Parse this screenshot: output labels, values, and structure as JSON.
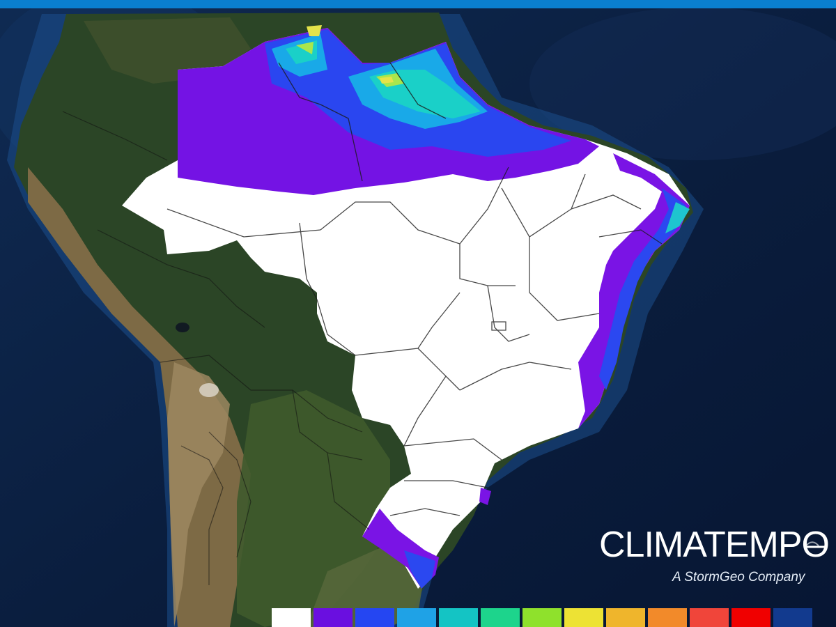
{
  "brand": {
    "name": "CLIMATEMPO",
    "tagline": "A StormGeo Company",
    "top_bar_color": "#0a7fcf"
  },
  "map": {
    "region": "South America",
    "base_layer": "satellite relief imagery with country and Brazilian state borders",
    "ocean_color": "#0b2347",
    "land_colors": [
      "#263f1f",
      "#6e6040",
      "#8d7a58"
    ],
    "overlay": {
      "no_value_color": "#ffffff",
      "features": [
        {
          "name": "northern band",
          "colors": [
            "#7b12e6",
            "#2a46f0",
            "#16a7e8",
            "#17c7cc",
            "#9fe54a",
            "#dfe54a"
          ]
        },
        {
          "name": "east coast strip",
          "colors": [
            "#7b12e6",
            "#2a46f0",
            "#16a7e8"
          ]
        },
        {
          "name": "southern coast patch",
          "colors": [
            "#7b12e6",
            "#2a46f0"
          ]
        }
      ]
    }
  },
  "legend": {
    "swatches": [
      {
        "color": "#ffffff",
        "icon": "legend-swatch-white"
      },
      {
        "color": "#6a0fe0",
        "icon": "legend-swatch-purple"
      },
      {
        "color": "#2546f2",
        "icon": "legend-swatch-blue"
      },
      {
        "color": "#1fa2e6",
        "icon": "legend-swatch-light-blue"
      },
      {
        "color": "#14c4c4",
        "icon": "legend-swatch-cyan"
      },
      {
        "color": "#1dd48c",
        "icon": "legend-swatch-teal-green"
      },
      {
        "color": "#8fe12c",
        "icon": "legend-swatch-lime"
      },
      {
        "color": "#ede234",
        "icon": "legend-swatch-yellow"
      },
      {
        "color": "#efb52c",
        "icon": "legend-swatch-gold"
      },
      {
        "color": "#f28a2a",
        "icon": "legend-swatch-orange"
      },
      {
        "color": "#f0453a",
        "icon": "legend-swatch-red-orange"
      },
      {
        "color": "#f00000",
        "icon": "legend-swatch-red"
      },
      {
        "color": "#123a8e",
        "icon": "legend-swatch-navy"
      }
    ]
  }
}
